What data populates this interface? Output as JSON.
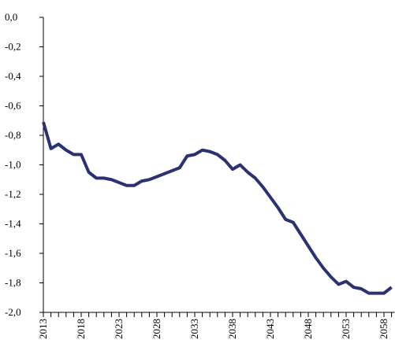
{
  "chart_data": {
    "type": "line",
    "categories": [
      "2013",
      null,
      null,
      null,
      null,
      "2018",
      null,
      null,
      null,
      null,
      "2023",
      null,
      null,
      null,
      null,
      "2028",
      null,
      null,
      null,
      null,
      "2033",
      null,
      null,
      null,
      null,
      "2038",
      null,
      null,
      null,
      null,
      "2043",
      null,
      null,
      null,
      null,
      "2048",
      null,
      null,
      null,
      null,
      "2053",
      null,
      null,
      null,
      null,
      "2058",
      null
    ],
    "series": [
      {
        "color": "#2b3272",
        "values": [
          -0.71,
          -0.89,
          -0.86,
          -0.9,
          -0.93,
          -0.93,
          -1.05,
          -1.09,
          -1.09,
          -1.1,
          -1.12,
          -1.14,
          -1.14,
          -1.11,
          -1.1,
          -1.08,
          -1.06,
          -1.04,
          -1.02,
          -0.94,
          -0.93,
          -0.9,
          -0.91,
          -0.93,
          -0.97,
          -1.03,
          -1.0,
          -1.05,
          -1.09,
          -1.15,
          -1.22,
          -1.29,
          -1.37,
          -1.39,
          -1.47,
          -1.55,
          -1.63,
          -1.7,
          -1.76,
          -1.81,
          -1.79,
          -1.83,
          -1.84,
          -1.87,
          -1.87,
          -1.87,
          -1.83
        ]
      }
    ],
    "ylim": [
      -2.0,
      0.0
    ],
    "yticks": [
      {
        "value": 0.0,
        "label": "0,0"
      },
      {
        "value": -0.2,
        "label": "-0,2"
      },
      {
        "value": -0.4,
        "label": "-0,4"
      },
      {
        "value": -0.6,
        "label": "-0,6"
      },
      {
        "value": -0.8,
        "label": "-0,8"
      },
      {
        "value": -1.0,
        "label": "-1,0"
      },
      {
        "value": -1.2,
        "label": "-1,2"
      },
      {
        "value": -1.4,
        "label": "-1,4"
      },
      {
        "value": -1.6,
        "label": "-1,6"
      },
      {
        "value": -1.8,
        "label": "-1,8"
      },
      {
        "value": -2.0,
        "label": "-2,0"
      }
    ]
  }
}
